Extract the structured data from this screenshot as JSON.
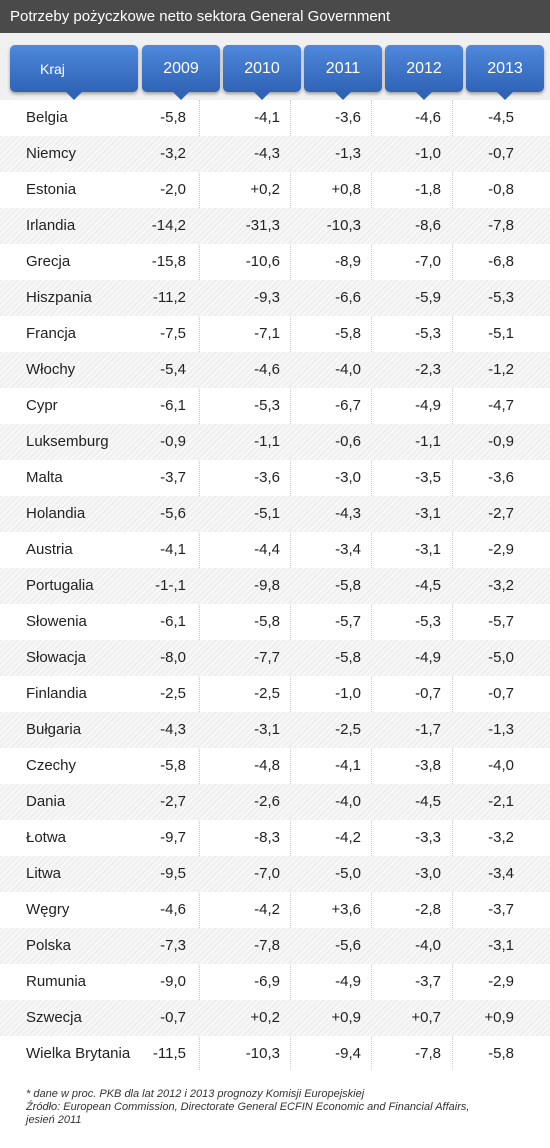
{
  "title": "Potrzeby pożyczkowe netto sektora General Government",
  "colors": {
    "header_blue": "#3a72c9",
    "title_bar": "#4a4a4a"
  },
  "chart_data": {
    "type": "table",
    "columns": [
      "Kraj",
      "2009",
      "2010",
      "2011",
      "2012",
      "2013"
    ],
    "rows": [
      [
        "Belgia",
        "-5,8",
        "-4,1",
        "-3,6",
        "-4,6",
        "-4,5"
      ],
      [
        "Niemcy",
        "-3,2",
        "-4,3",
        "-1,3",
        "-1,0",
        "-0,7"
      ],
      [
        "Estonia",
        "-2,0",
        "+0,2",
        "+0,8",
        "-1,8",
        "-0,8"
      ],
      [
        "Irlandia",
        "-14,2",
        "-31,3",
        "-10,3",
        "-8,6",
        "-7,8"
      ],
      [
        "Grecja",
        "-15,8",
        "-10,6",
        "-8,9",
        "-7,0",
        "-6,8"
      ],
      [
        "Hiszpania",
        "-11,2",
        "-9,3",
        "-6,6",
        "-5,9",
        "-5,3"
      ],
      [
        "Francja",
        "-7,5",
        "-7,1",
        "-5,8",
        "-5,3",
        "-5,1"
      ],
      [
        "Włochy",
        "-5,4",
        "-4,6",
        "-4,0",
        "-2,3",
        "-1,2"
      ],
      [
        "Cypr",
        "-6,1",
        "-5,3",
        "-6,7",
        "-4,9",
        "-4,7"
      ],
      [
        "Luksemburg",
        "-0,9",
        "-1,1",
        "-0,6",
        "-1,1",
        "-0,9"
      ],
      [
        "Malta",
        "-3,7",
        "-3,6",
        "-3,0",
        "-3,5",
        "-3,6"
      ],
      [
        "Holandia",
        "-5,6",
        "-5,1",
        "-4,3",
        "-3,1",
        "-2,7"
      ],
      [
        "Austria",
        "-4,1",
        "-4,4",
        "-3,4",
        "-3,1",
        "-2,9"
      ],
      [
        "Portugalia",
        "-1-,1",
        "-9,8",
        "-5,8",
        "-4,5",
        "-3,2"
      ],
      [
        "Słowenia",
        "-6,1",
        "-5,8",
        "-5,7",
        "-5,3",
        "-5,7"
      ],
      [
        "Słowacja",
        "-8,0",
        "-7,7",
        "-5,8",
        "-4,9",
        "-5,0"
      ],
      [
        "Finlandia",
        "-2,5",
        "-2,5",
        "-1,0",
        "-0,7",
        "-0,7"
      ],
      [
        "Bułgaria",
        "-4,3",
        "-3,1",
        "-2,5",
        "-1,7",
        "-1,3"
      ],
      [
        "Czechy",
        "-5,8",
        "-4,8",
        "-4,1",
        "-3,8",
        "-4,0"
      ],
      [
        "Dania",
        "-2,7",
        "-2,6",
        "-4,0",
        "-4,5",
        "-2,1"
      ],
      [
        "Łotwa",
        "-9,7",
        "-8,3",
        "-4,2",
        "-3,3",
        "-3,2"
      ],
      [
        "Litwa",
        "-9,5",
        "-7,0",
        "-5,0",
        "-3,0",
        "-3,4"
      ],
      [
        "Węgry",
        "-4,6",
        "-4,2",
        "+3,6",
        "-2,8",
        "-3,7"
      ],
      [
        "Polska",
        "-7,3",
        "-7,8",
        "-5,6",
        "-4,0",
        "-3,1"
      ],
      [
        "Rumunia",
        "-9,0",
        "-6,9",
        "-4,9",
        "-3,7",
        "-2,9"
      ],
      [
        "Szwecja",
        "-0,7",
        "+0,2",
        "+0,9",
        "+0,7",
        "+0,9"
      ],
      [
        "Wielka Brytania",
        "-11,5",
        "-10,3",
        "-9,4",
        "-7,8",
        "-5,8"
      ]
    ]
  },
  "footnote": {
    "line1": "* dane w proc. PKB dla lat 2012 i 2013 prognozy Komisji Europejskiej",
    "line2": "Źródło: European Commission, Directorate General ECFIN Economic and Financial Affairs,",
    "line3": "jesień 2011"
  }
}
